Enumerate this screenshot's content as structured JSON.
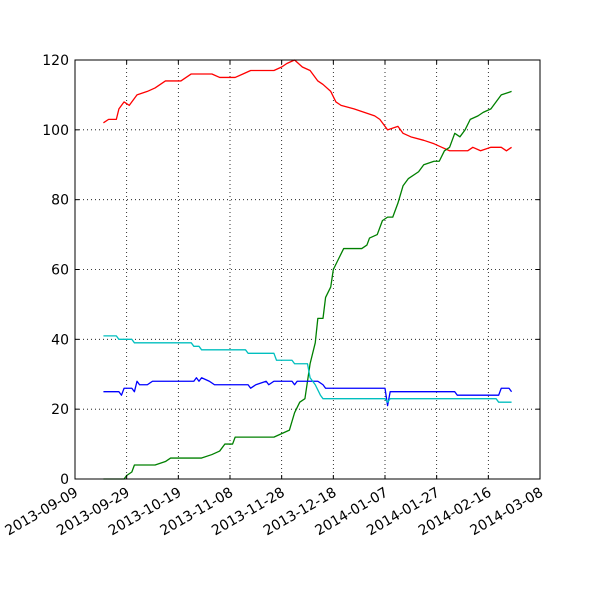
{
  "chart_data": {
    "type": "line",
    "title": "",
    "xlabel": "",
    "ylabel": "",
    "xlim": [
      "2013-09-09",
      "2014-03-08"
    ],
    "ylim": [
      0,
      120
    ],
    "x_ticks": [
      "2013-09-09",
      "2013-09-29",
      "2013-10-19",
      "2013-11-08",
      "2013-11-28",
      "2013-12-18",
      "2014-01-07",
      "2014-01-27",
      "2014-02-16",
      "2014-03-08"
    ],
    "y_ticks": [
      0,
      20,
      40,
      60,
      80,
      100,
      120
    ],
    "grid": true,
    "legend": "none",
    "series": [
      {
        "color": "#ff0000",
        "points": [
          [
            "2013-09-20",
            102
          ],
          [
            "2013-09-22",
            103
          ],
          [
            "2013-09-25",
            103
          ],
          [
            "2013-09-26",
            106
          ],
          [
            "2013-09-28",
            108
          ],
          [
            "2013-09-30",
            107
          ],
          [
            "2013-10-03",
            110
          ],
          [
            "2013-10-07",
            111
          ],
          [
            "2013-10-10",
            112
          ],
          [
            "2013-10-14",
            114
          ],
          [
            "2013-10-20",
            114
          ],
          [
            "2013-10-24",
            116
          ],
          [
            "2013-11-01",
            116
          ],
          [
            "2013-11-04",
            115
          ],
          [
            "2013-11-10",
            115
          ],
          [
            "2013-11-13",
            116
          ],
          [
            "2013-11-16",
            117
          ],
          [
            "2013-11-25",
            117
          ],
          [
            "2013-11-28",
            118
          ],
          [
            "2013-11-30",
            119
          ],
          [
            "2013-12-03",
            120
          ],
          [
            "2013-12-06",
            118
          ],
          [
            "2013-12-09",
            117
          ],
          [
            "2013-12-12",
            114
          ],
          [
            "2013-12-14",
            113
          ],
          [
            "2013-12-17",
            111
          ],
          [
            "2013-12-19",
            108
          ],
          [
            "2013-12-21",
            107
          ],
          [
            "2013-12-26",
            106
          ],
          [
            "2013-12-30",
            105
          ],
          [
            "2014-01-03",
            104
          ],
          [
            "2014-01-05",
            103
          ],
          [
            "2014-01-08",
            100
          ],
          [
            "2014-01-12",
            101
          ],
          [
            "2014-01-14",
            99
          ],
          [
            "2014-01-17",
            98
          ],
          [
            "2014-01-22",
            97
          ],
          [
            "2014-01-26",
            96
          ],
          [
            "2014-01-29",
            95
          ],
          [
            "2014-02-01",
            94
          ],
          [
            "2014-02-08",
            94
          ],
          [
            "2014-02-10",
            95
          ],
          [
            "2014-02-13",
            94
          ],
          [
            "2014-02-17",
            95
          ],
          [
            "2014-02-21",
            95
          ],
          [
            "2014-02-23",
            94
          ],
          [
            "2014-02-25",
            95
          ]
        ]
      },
      {
        "color": "#008000",
        "points": [
          [
            "2013-09-20",
            0
          ],
          [
            "2013-09-28",
            0
          ],
          [
            "2013-09-29",
            1
          ],
          [
            "2013-10-01",
            2
          ],
          [
            "2013-10-02",
            4
          ],
          [
            "2013-10-10",
            4
          ],
          [
            "2013-10-14",
            5
          ],
          [
            "2013-10-16",
            6
          ],
          [
            "2013-10-28",
            6
          ],
          [
            "2013-11-01",
            7
          ],
          [
            "2013-11-04",
            8
          ],
          [
            "2013-11-06",
            10
          ],
          [
            "2013-11-09",
            10
          ],
          [
            "2013-11-10",
            12
          ],
          [
            "2013-11-25",
            12
          ],
          [
            "2013-11-28",
            13
          ],
          [
            "2013-12-01",
            14
          ],
          [
            "2013-12-03",
            19
          ],
          [
            "2013-12-05",
            22
          ],
          [
            "2013-12-07",
            23
          ],
          [
            "2013-12-09",
            33
          ],
          [
            "2013-12-11",
            39
          ],
          [
            "2013-12-12",
            46
          ],
          [
            "2013-12-14",
            46
          ],
          [
            "2013-12-15",
            52
          ],
          [
            "2013-12-17",
            55
          ],
          [
            "2013-12-18",
            60
          ],
          [
            "2013-12-20",
            63
          ],
          [
            "2013-12-22",
            66
          ],
          [
            "2013-12-29",
            66
          ],
          [
            "2013-12-31",
            67
          ],
          [
            "2014-01-01",
            69
          ],
          [
            "2014-01-04",
            70
          ],
          [
            "2014-01-06",
            74
          ],
          [
            "2014-01-08",
            75
          ],
          [
            "2014-01-10",
            75
          ],
          [
            "2014-01-12",
            79
          ],
          [
            "2014-01-14",
            84
          ],
          [
            "2014-01-16",
            86
          ],
          [
            "2014-01-20",
            88
          ],
          [
            "2014-01-22",
            90
          ],
          [
            "2014-01-26",
            91
          ],
          [
            "2014-01-28",
            91
          ],
          [
            "2014-01-30",
            94
          ],
          [
            "2014-02-01",
            95
          ],
          [
            "2014-02-03",
            99
          ],
          [
            "2014-02-05",
            98
          ],
          [
            "2014-02-07",
            100
          ],
          [
            "2014-02-09",
            103
          ],
          [
            "2014-02-12",
            104
          ],
          [
            "2014-02-14",
            105
          ],
          [
            "2014-02-17",
            106
          ],
          [
            "2014-02-19",
            108
          ],
          [
            "2014-02-21",
            110
          ],
          [
            "2014-02-25",
            111
          ]
        ]
      },
      {
        "color": "#0000ff",
        "points": [
          [
            "2013-09-20",
            25
          ],
          [
            "2013-09-26",
            25
          ],
          [
            "2013-09-27",
            24
          ],
          [
            "2013-09-28",
            26
          ],
          [
            "2013-10-01",
            26
          ],
          [
            "2013-10-02",
            25
          ],
          [
            "2013-10-03",
            28
          ],
          [
            "2013-10-04",
            27
          ],
          [
            "2013-10-07",
            27
          ],
          [
            "2013-10-09",
            28
          ],
          [
            "2013-10-25",
            28
          ],
          [
            "2013-10-26",
            29
          ],
          [
            "2013-10-27",
            28
          ],
          [
            "2013-10-28",
            29
          ],
          [
            "2013-10-31",
            28
          ],
          [
            "2013-11-02",
            27
          ],
          [
            "2013-11-15",
            27
          ],
          [
            "2013-11-16",
            26
          ],
          [
            "2013-11-18",
            27
          ],
          [
            "2013-11-22",
            28
          ],
          [
            "2013-11-23",
            27
          ],
          [
            "2013-11-25",
            28
          ],
          [
            "2013-12-02",
            28
          ],
          [
            "2013-12-03",
            27
          ],
          [
            "2013-12-04",
            28
          ],
          [
            "2013-12-12",
            28
          ],
          [
            "2013-12-14",
            27
          ],
          [
            "2013-12-15",
            26
          ],
          [
            "2014-01-06",
            26
          ],
          [
            "2014-01-07",
            26
          ],
          [
            "2014-01-08",
            21
          ],
          [
            "2014-01-09",
            25
          ],
          [
            "2014-02-03",
            25
          ],
          [
            "2014-02-04",
            24
          ],
          [
            "2014-02-20",
            24
          ],
          [
            "2014-02-21",
            26
          ],
          [
            "2014-02-24",
            26
          ],
          [
            "2014-02-25",
            25
          ]
        ]
      },
      {
        "color": "#00bfbf",
        "points": [
          [
            "2013-09-20",
            41
          ],
          [
            "2013-09-25",
            41
          ],
          [
            "2013-09-26",
            40
          ],
          [
            "2013-10-01",
            40
          ],
          [
            "2013-10-02",
            39
          ],
          [
            "2013-10-24",
            39
          ],
          [
            "2013-10-25",
            38
          ],
          [
            "2013-10-27",
            38
          ],
          [
            "2013-10-28",
            37
          ],
          [
            "2013-11-14",
            37
          ],
          [
            "2013-11-15",
            36
          ],
          [
            "2013-11-25",
            36
          ],
          [
            "2013-11-26",
            34
          ],
          [
            "2013-12-02",
            34
          ],
          [
            "2013-12-03",
            33
          ],
          [
            "2013-12-08",
            33
          ],
          [
            "2013-12-09",
            29
          ],
          [
            "2013-12-11",
            27
          ],
          [
            "2013-12-13",
            24
          ],
          [
            "2013-12-14",
            23
          ],
          [
            "2014-01-07",
            23
          ],
          [
            "2014-01-08",
            22
          ],
          [
            "2014-01-09",
            23
          ],
          [
            "2014-02-19",
            23
          ],
          [
            "2014-02-20",
            22
          ],
          [
            "2014-02-25",
            22
          ]
        ]
      }
    ]
  }
}
